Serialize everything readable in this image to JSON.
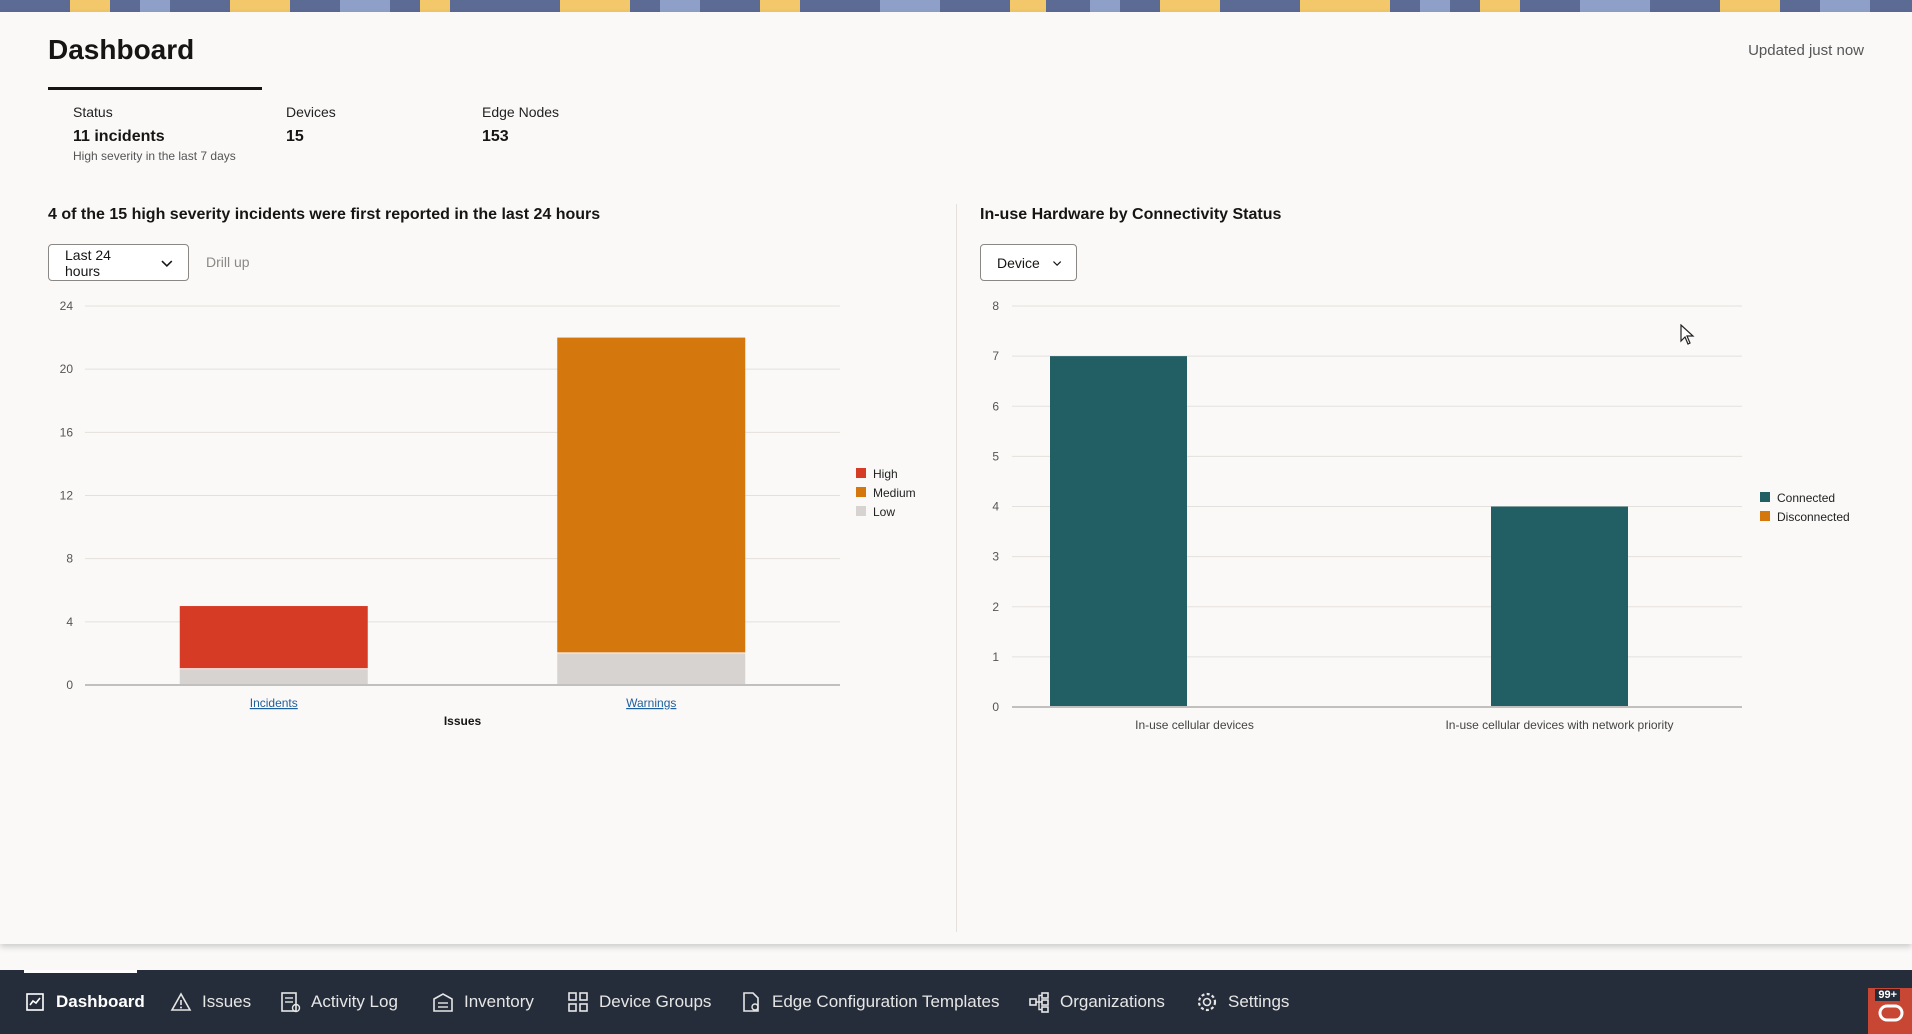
{
  "header": {
    "title": "Dashboard",
    "updated": "Updated just now"
  },
  "stats": [
    {
      "label": "Status",
      "value": "11 incidents",
      "sub": "High severity in the last 7 days"
    },
    {
      "label": "Devices",
      "value": "15"
    },
    {
      "label": "Edge Nodes",
      "value": "153"
    }
  ],
  "left_chart": {
    "title": "4 of the 15 high severity incidents were first reported in the last 24 hours",
    "select_value": "Last 24 hours",
    "drill_up": "Drill up"
  },
  "right_chart": {
    "title": "In-use Hardware by Connectivity Status",
    "select_value": "Device"
  },
  "chart_data": [
    {
      "type": "bar",
      "stacked": true,
      "categories": [
        "Incidents",
        "Warnings"
      ],
      "series": [
        {
          "name": "High",
          "values": [
            4,
            0
          ],
          "color": "#d63b25"
        },
        {
          "name": "Medium",
          "values": [
            0,
            20
          ],
          "color": "#d4770c"
        },
        {
          "name": "Low",
          "values": [
            1,
            2
          ],
          "color": "#d6d3d0"
        }
      ],
      "yticks": [
        "0",
        "4",
        "8",
        "12",
        "16",
        "20",
        "24"
      ],
      "ylim": [
        0,
        24
      ],
      "xlabel": "Issues",
      "ylabel": "",
      "grid": true,
      "legend": "right"
    },
    {
      "type": "bar",
      "categories": [
        "In-use cellular devices",
        "In-use cellular devices with network priority"
      ],
      "series": [
        {
          "name": "Connected",
          "values": [
            7,
            4
          ],
          "color": "#225f65"
        },
        {
          "name": "Disconnected",
          "values": [
            0,
            0
          ],
          "color": "#d4770c"
        }
      ],
      "yticks": [
        "0",
        "1",
        "2",
        "3",
        "4",
        "5",
        "6",
        "7",
        "8"
      ],
      "ylim": [
        0,
        8
      ],
      "xlabel": "",
      "ylabel": "",
      "grid": true,
      "legend": "right"
    }
  ],
  "nav": {
    "items": [
      {
        "label": "Dashboard",
        "icon": "dashboard-icon",
        "active": true
      },
      {
        "label": "Issues",
        "icon": "warning-triangle-icon"
      },
      {
        "label": "Activity Log",
        "icon": "activity-log-icon"
      },
      {
        "label": "Inventory",
        "icon": "inventory-icon"
      },
      {
        "label": "Device Groups",
        "icon": "device-groups-icon"
      },
      {
        "label": "Edge Configuration Templates",
        "icon": "document-gear-icon"
      },
      {
        "label": "Organizations",
        "icon": "organization-tree-icon"
      },
      {
        "label": "Settings",
        "icon": "gear-icon"
      }
    ],
    "badge_count": "99+"
  }
}
